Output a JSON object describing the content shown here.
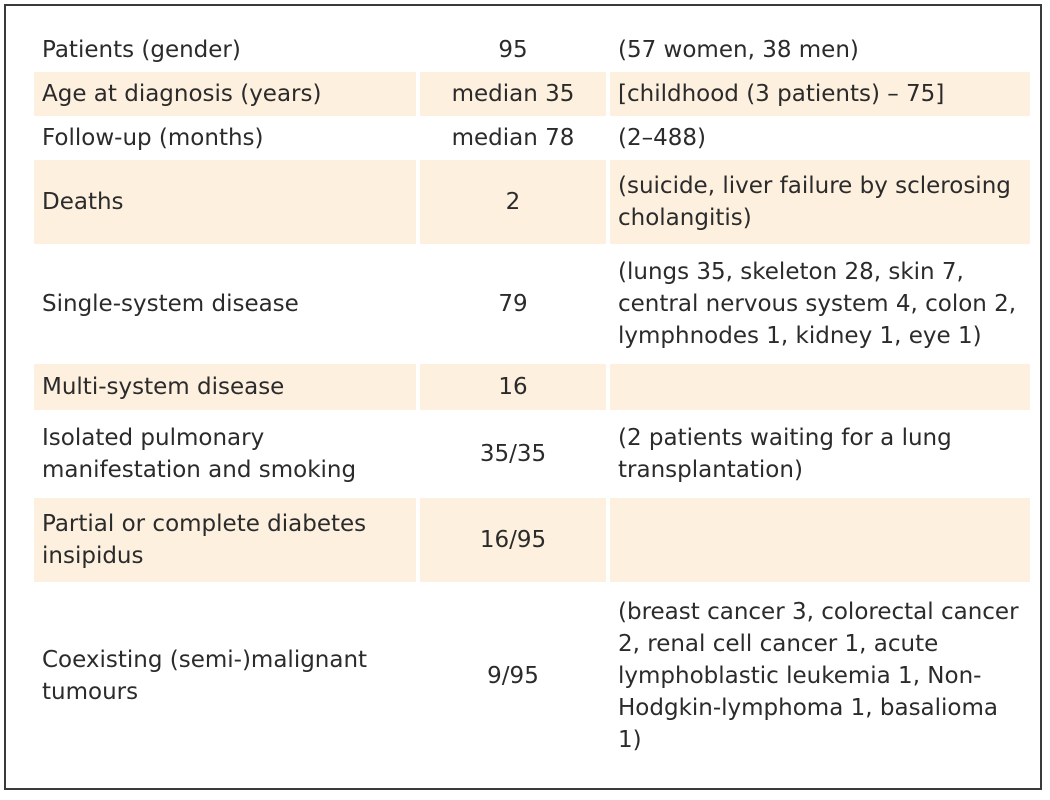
{
  "table": {
    "rows": [
      {
        "label": "Patients (gender)",
        "count": "95",
        "detail": "(57 women, 38 men)",
        "shaded": false
      },
      {
        "label": "Age at diagnosis (years)",
        "count": "median 35",
        "detail": "[childhood (3 patients) – 75]",
        "shaded": true
      },
      {
        "label": "Follow-up (months)",
        "count": "median 78",
        "detail": "(2–488)",
        "shaded": false
      },
      {
        "label": "Deaths",
        "count": "2",
        "detail": "(suicide, liver failure by sclerosing cholangitis)",
        "shaded": true
      },
      {
        "label": "Single-system disease",
        "count": "79",
        "detail": "(lungs 35, skeleton 28, skin 7, central nervous system 4, colon 2, lymphnodes 1, kidney 1, eye 1)",
        "shaded": false
      },
      {
        "label": "Multi-system disease",
        "count": "16",
        "detail": "",
        "shaded": true
      },
      {
        "label": "Isolated pulmonary manifestation and smoking",
        "count": "35/35",
        "detail": "(2 patients waiting for a lung transplantation)",
        "shaded": false
      },
      {
        "label": "Partial or complete diabetes insipidus",
        "count": "16/95",
        "detail": "",
        "shaded": true
      },
      {
        "label": "Coexisting (semi-)malignant tumours",
        "count": "9/95",
        "detail": "(breast cancer 3, colorectal cancer 2, renal cell cancer 1, acute lymphoblastic leukemia 1, Non-Hodgkin-lymphoma 1, basalioma 1)",
        "shaded": false
      }
    ]
  }
}
